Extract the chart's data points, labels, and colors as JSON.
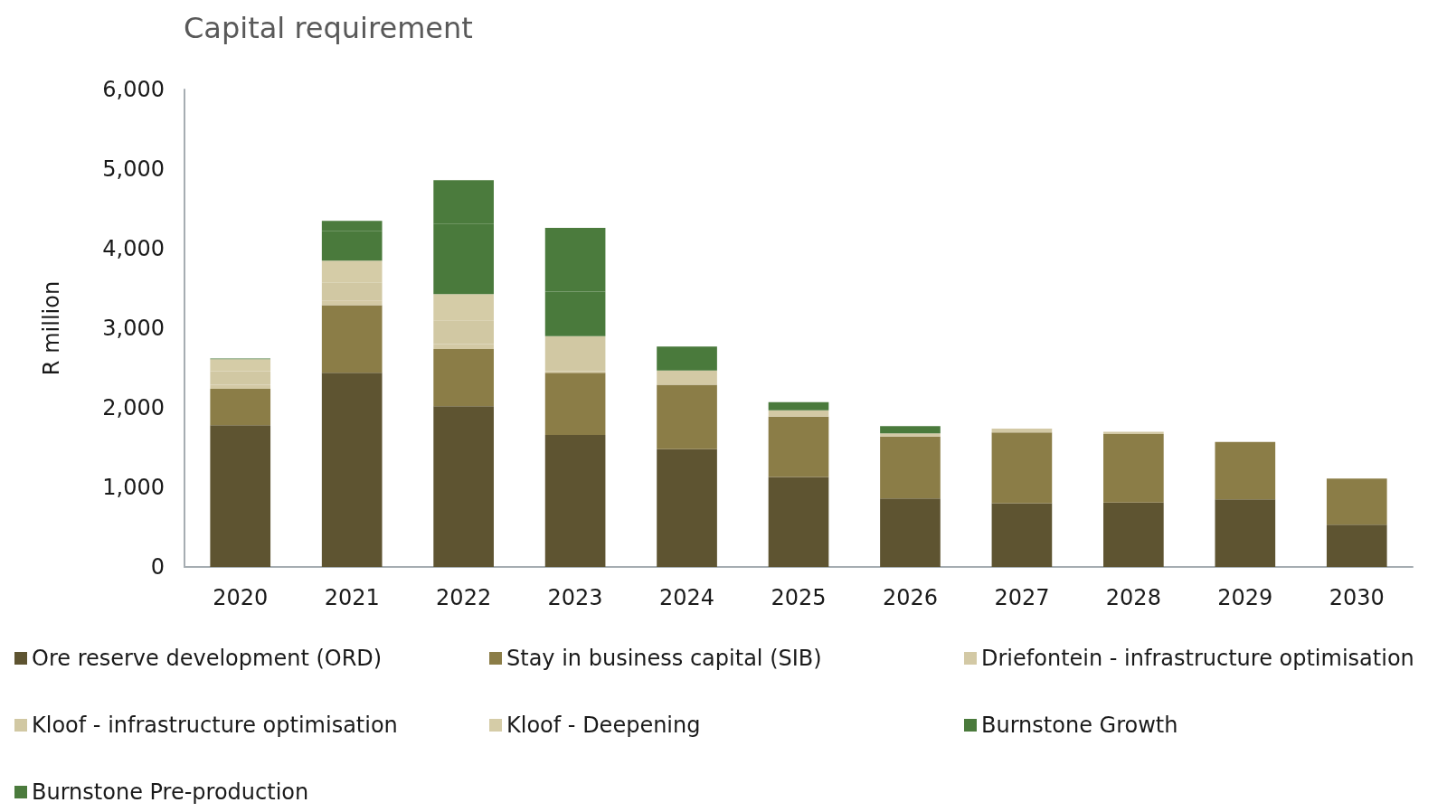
{
  "chart_data": {
    "type": "bar",
    "title": "Capital requirement",
    "ylabel": "R million",
    "categories": [
      "2020",
      "2021",
      "2022",
      "2023",
      "2024",
      "2025",
      "2026",
      "2027",
      "2028",
      "2029",
      "2030"
    ],
    "stacked": true,
    "ylim": [
      0,
      6000
    ],
    "yticks": [
      0,
      {
        "value": 1000,
        "label": "1,000"
      },
      {
        "value": 2000,
        "label": "2,000"
      },
      {
        "value": 3000,
        "label": "3,000"
      },
      {
        "value": 4000,
        "label": "4,000"
      },
      {
        "value": 5000,
        "label": "5,000"
      },
      {
        "value": 6000,
        "label": "6,000"
      }
    ],
    "grid": false,
    "legend": "bottom",
    "series": [
      {
        "name": "Ore reserve development (ORD)",
        "color": "#5e5431",
        "values": [
          1780,
          2440,
          2020,
          1660,
          1480,
          1130,
          860,
          800,
          810,
          850,
          530
        ]
      },
      {
        "name": "Stay in business capital (SIB)",
        "color": "#8b7d47",
        "values": [
          460,
          850,
          720,
          780,
          810,
          760,
          780,
          890,
          860,
          720,
          580
        ]
      },
      {
        "name": "Driefontein - infrastructure optimisation",
        "color": "#d3c9a5",
        "values": [
          50,
          60,
          60,
          20,
          180,
          80,
          40,
          50,
          30,
          0,
          0
        ]
      },
      {
        "name": "Kloof - infrastructure optimisation",
        "color": "#d1c8a3",
        "values": [
          170,
          220,
          300,
          440,
          0,
          0,
          0,
          0,
          0,
          0,
          0
        ]
      },
      {
        "name": "Kloof - Deepening",
        "color": "#d5cca7",
        "values": [
          150,
          280,
          330,
          0,
          0,
          0,
          0,
          0,
          0,
          0,
          0
        ]
      },
      {
        "name": "Burnstone Growth",
        "color": "#4a7a3c",
        "values": [
          0,
          370,
          880,
          560,
          300,
          100,
          90,
          0,
          0,
          0,
          0
        ]
      },
      {
        "name": "Burnstone Pre-production",
        "color": "#4b7b3d",
        "values": [
          10,
          130,
          550,
          800,
          0,
          0,
          0,
          0,
          0,
          0,
          0
        ]
      }
    ]
  }
}
